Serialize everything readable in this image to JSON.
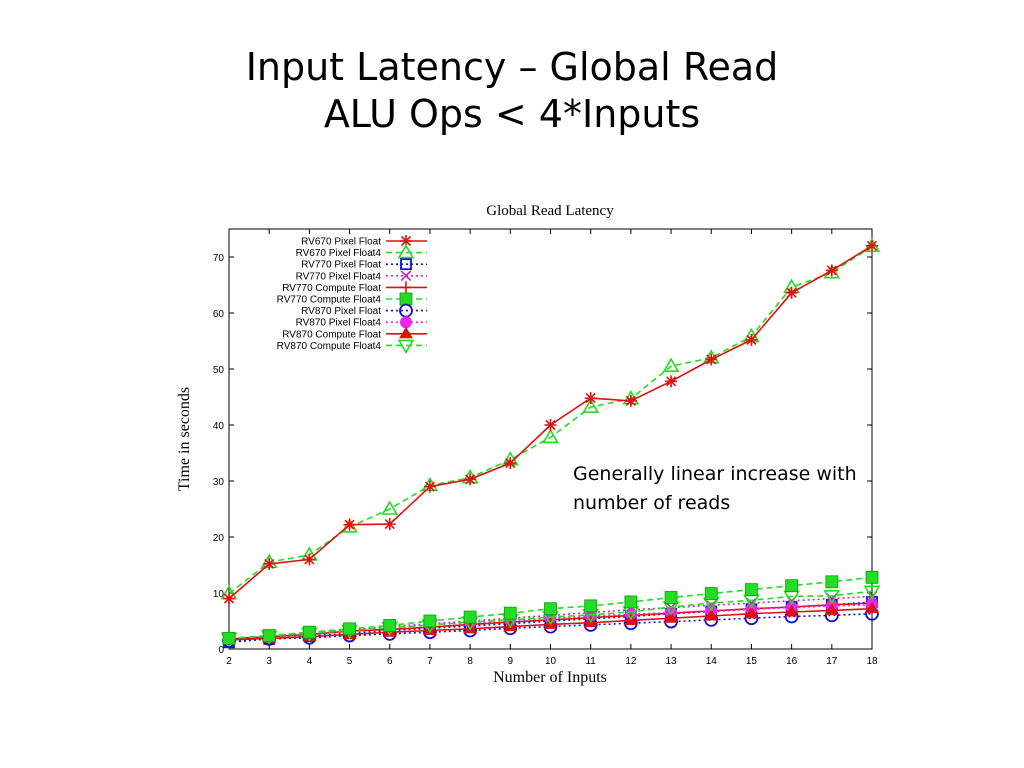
{
  "slide": {
    "title_line1": "Input Latency – Global Read",
    "title_line2": "ALU Ops < 4*Inputs",
    "callout": "Generally linear increase with number of reads"
  },
  "chart_data": {
    "type": "line",
    "title": "Global Read Latency",
    "xlabel": "Number of Inputs",
    "ylabel": "Time in seconds",
    "xlim": [
      2,
      18
    ],
    "ylim": [
      0,
      75
    ],
    "xticks": [
      2,
      3,
      4,
      5,
      6,
      7,
      8,
      9,
      10,
      11,
      12,
      13,
      14,
      15,
      16,
      17,
      18
    ],
    "yticks": [
      0,
      10,
      20,
      30,
      40,
      50,
      60,
      70
    ],
    "grid": false,
    "legend_position": "top-left",
    "x": [
      2,
      3,
      4,
      5,
      6,
      7,
      8,
      9,
      10,
      11,
      12,
      13,
      14,
      15,
      16,
      17,
      18
    ],
    "series": [
      {
        "name": "RV670 Pixel Float",
        "color": "#dd1111",
        "dash": "solid",
        "marker": "star",
        "values": [
          9,
          15.2,
          16,
          22.2,
          22.3,
          29,
          30.3,
          33.2,
          40,
          44.8,
          44.3,
          47.8,
          51.7,
          55.2,
          63.6,
          67.6,
          72
        ]
      },
      {
        "name": "RV670 Pixel Float4",
        "color": "#22dd22",
        "dash": "dashed",
        "marker": "triangle-up",
        "values": [
          9.9,
          15.5,
          16.8,
          21.8,
          25,
          29.2,
          30.6,
          33.8,
          37.8,
          43.2,
          44.7,
          50.5,
          52,
          55.8,
          64.6,
          67.2,
          71.9
        ]
      },
      {
        "name": "RV770 Pixel Float",
        "color": "#1111cc",
        "dash": "dotted",
        "marker": "square",
        "values": [
          1.2,
          1.8,
          2.3,
          2.8,
          3.3,
          3.7,
          4.1,
          4.5,
          5,
          5.4,
          5.8,
          6.3,
          6.7,
          7.1,
          7.5,
          7.9,
          8.4
        ]
      },
      {
        "name": "RV770 Pixel Float4",
        "color": "#cc22cc",
        "dash": "dotted",
        "marker": "x",
        "values": [
          1.7,
          2.3,
          2.9,
          3.4,
          4,
          4.5,
          5,
          5.5,
          6,
          6.5,
          7,
          7.4,
          7.8,
          8.2,
          8.6,
          9,
          9.4
        ]
      },
      {
        "name": "RV770 Compute Float",
        "color": "#dd1111",
        "dash": "solid",
        "marker": "plus",
        "values": [
          1.8,
          2.2,
          2.6,
          3.2,
          3.5,
          3.9,
          4.4,
          4.8,
          5.2,
          5.6,
          6,
          6.4,
          6.8,
          7.2,
          7.5,
          7.9,
          8.2
        ]
      },
      {
        "name": "RV770 Compute Float4",
        "color": "#22dd22",
        "dash": "dashed",
        "marker": "square-filled",
        "values": [
          1.9,
          2.4,
          3,
          3.6,
          4.2,
          5,
          5.7,
          6.4,
          7.2,
          7.7,
          8.4,
          9.2,
          9.9,
          10.6,
          11.3,
          12,
          12.8
        ]
      },
      {
        "name": "RV870 Pixel Float",
        "color": "#1111cc",
        "dash": "dotted",
        "marker": "circle",
        "values": [
          1.5,
          1.8,
          2,
          2.4,
          2.7,
          3,
          3.3,
          3.7,
          4,
          4.3,
          4.6,
          4.9,
          5.2,
          5.5,
          5.8,
          6,
          6.3
        ]
      },
      {
        "name": "RV870 Pixel Float4",
        "color": "#ee22ee",
        "dash": "dotted",
        "marker": "circle-filled",
        "values": [
          1.8,
          2.3,
          2.8,
          3.3,
          3.8,
          4.3,
          4.7,
          5.1,
          5.5,
          5.9,
          6.2,
          6.5,
          6.8,
          7.1,
          7.4,
          7.7,
          7.9
        ]
      },
      {
        "name": "RV870 Compute Float",
        "color": "#dd1111",
        "dash": "solid",
        "marker": "triangle-filled",
        "values": [
          1.6,
          1.9,
          2.2,
          2.6,
          3,
          3.3,
          3.6,
          4,
          4.4,
          4.7,
          5.1,
          5.5,
          5.9,
          6.3,
          6.6,
          6.9,
          7.2
        ]
      },
      {
        "name": "RV870 Compute Float4",
        "color": "#22dd22",
        "dash": "dashed",
        "marker": "triangle-down",
        "values": [
          1.9,
          2.3,
          2.8,
          3.3,
          3.8,
          4.3,
          4.8,
          5.2,
          5.7,
          6.1,
          6.6,
          7.5,
          8.2,
          8.7,
          9.4,
          9.5,
          10.3
        ]
      }
    ]
  }
}
